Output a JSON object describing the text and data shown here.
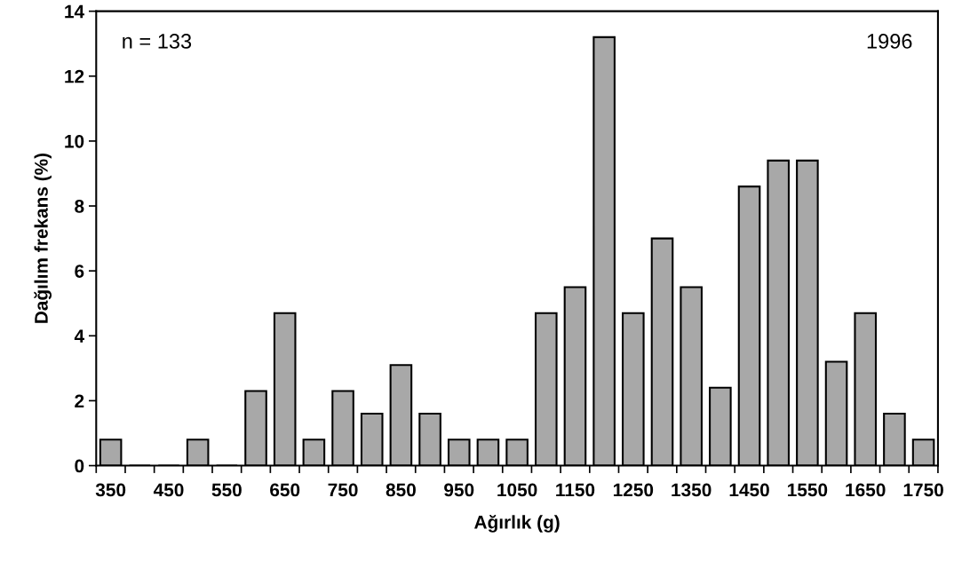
{
  "chart_data": {
    "type": "bar",
    "xlabel": "Ağırlık (g)",
    "ylabel": "Dağılım frekans (%)",
    "categories": [
      "350",
      null,
      "450",
      null,
      "550",
      null,
      "650",
      null,
      "750",
      null,
      "850",
      null,
      "950",
      null,
      "1050",
      null,
      "1150",
      null,
      "1250",
      null,
      "1350",
      null,
      "1450",
      null,
      "1550",
      null,
      "1650",
      null,
      "1750"
    ],
    "values": [
      0.8,
      0,
      0,
      0.8,
      0,
      2.3,
      4.7,
      0.8,
      2.3,
      1.6,
      3.1,
      1.6,
      0.8,
      0.8,
      0.8,
      4.7,
      5.5,
      13.2,
      4.7,
      7.0,
      5.5,
      2.4,
      8.6,
      9.4,
      9.4,
      3.2,
      4.7,
      1.6,
      0.8
    ],
    "color": "#a8a8a8",
    "ylim": [
      0,
      14
    ],
    "yticks": [
      0,
      2,
      4,
      6,
      8,
      10,
      12,
      14
    ],
    "grid": false,
    "legend": false,
    "annotations": [
      "n = 133",
      "1996"
    ]
  }
}
